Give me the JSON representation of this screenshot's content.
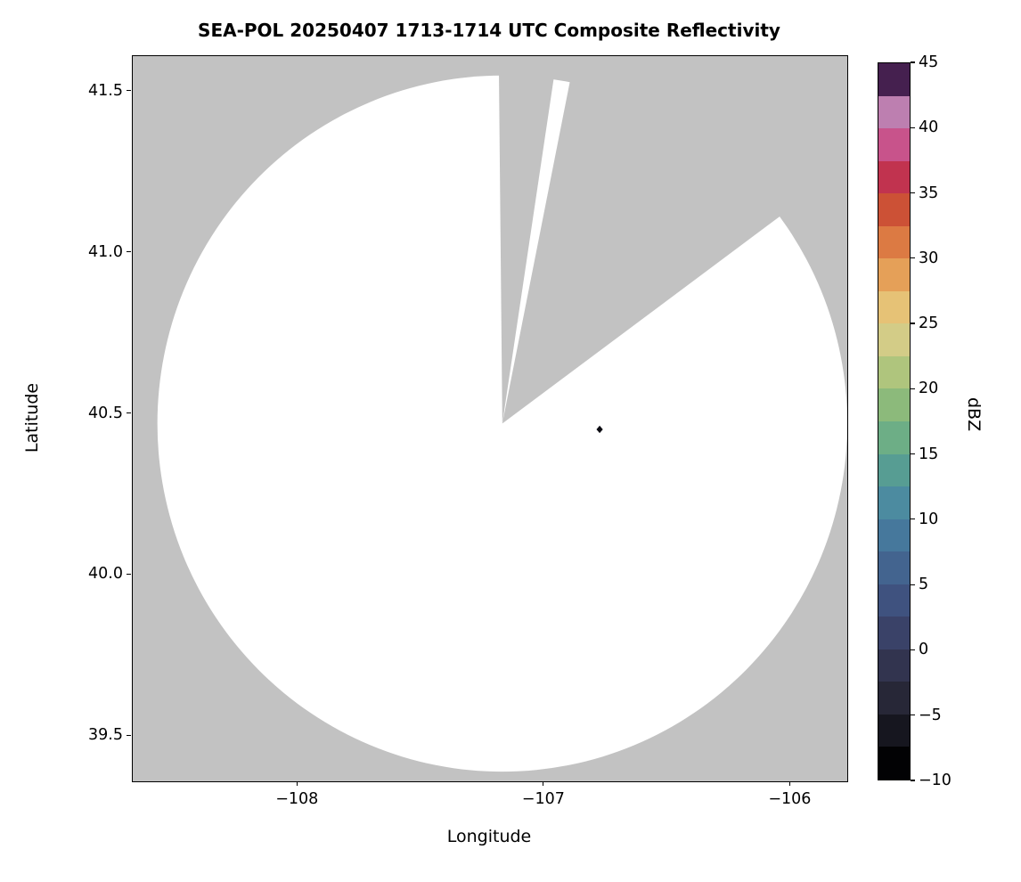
{
  "figure": {
    "background": "#ffffff"
  },
  "chart_data": {
    "type": "heatmap",
    "subtype": "radar-ppi-composite-reflectivity",
    "title": "SEA-POL 20250407 1713-1714 UTC Composite Reflectivity",
    "xlabel": "Longitude",
    "ylabel": "Latitude",
    "xlim": [
      -108.67,
      -105.77
    ],
    "ylim": [
      39.36,
      41.61
    ],
    "x_ticks": [
      -108,
      -107,
      -106
    ],
    "x_tick_labels": [
      "−108",
      "−107",
      "−106"
    ],
    "y_ticks": [
      39.5,
      40.0,
      40.5,
      41.0,
      41.5
    ],
    "y_tick_labels": [
      "39.5",
      "40.0",
      "40.5",
      "41.0",
      "41.5"
    ],
    "grid": false,
    "background_color": "#c2c2c2",
    "coverage": {
      "description": "White disk = radar scan coverage area; gray wedges = unscanned sectors with apex at radar site",
      "center_lon_lat": [
        -107.17,
        40.47
      ],
      "radius_lon_deg": 1.4,
      "radius_lat_deg": 1.08,
      "fill": "#ffffff",
      "missing_sectors": [
        {
          "name": "narrow-north-notch",
          "polygon": [
            [
              -107.17,
              40.47
            ],
            [
              -107.185,
              41.65
            ],
            [
              -106.94,
              41.65
            ]
          ]
        },
        {
          "name": "northeast-sector",
          "polygon": [
            [
              -107.17,
              40.47
            ],
            [
              -106.865,
              41.65
            ],
            [
              -105.7,
              41.65
            ],
            [
              -105.7,
              41.1
            ],
            [
              -106.04,
              41.115
            ]
          ]
        }
      ]
    },
    "echoes": [
      {
        "lon": -106.775,
        "lat": 40.452,
        "marker": "diamond",
        "color": "#0b0b12"
      }
    ],
    "colorbar": {
      "label": "dBZ",
      "min": -10,
      "max": 45,
      "ticks": [
        -10,
        -5,
        0,
        5,
        10,
        15,
        20,
        25,
        30,
        35,
        40,
        45
      ],
      "tick_labels": [
        "−10",
        "−5",
        "0",
        "5",
        "10",
        "15",
        "20",
        "25",
        "30",
        "35",
        "40",
        "45"
      ],
      "segment_step": 2.5,
      "segment_colors_bottom_to_top": [
        "#020204",
        "#16161f",
        "#272737",
        "#32344f",
        "#3a4268",
        "#3f527f",
        "#43648f",
        "#46789c",
        "#4c8ba0",
        "#579d93",
        "#6dae86",
        "#8cba7b",
        "#afc57d",
        "#d3cc87",
        "#e6c276",
        "#e5a058",
        "#dc7a43",
        "#cc5136",
        "#c1334f",
        "#c8538b",
        "#bd7fb0",
        "#45204f"
      ]
    }
  }
}
